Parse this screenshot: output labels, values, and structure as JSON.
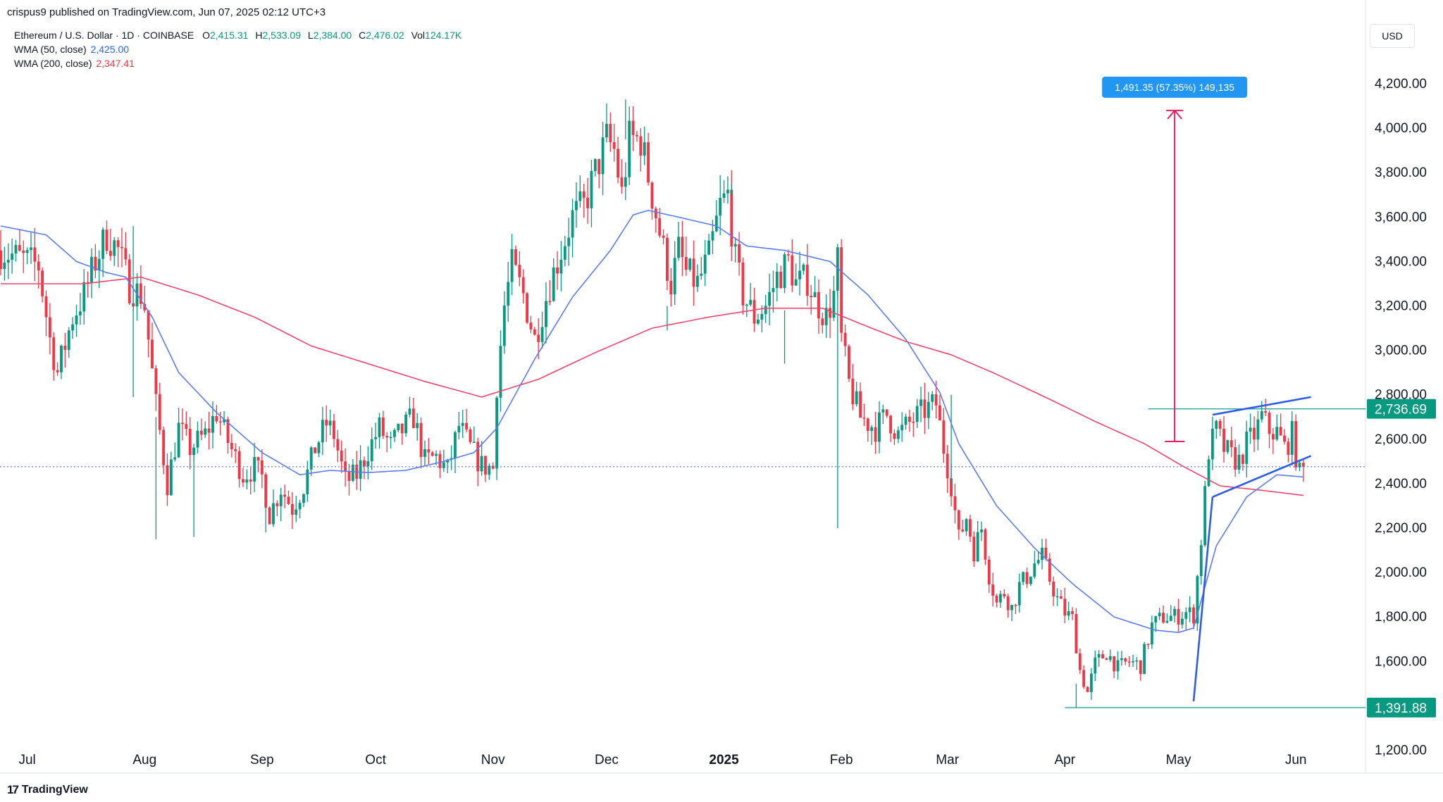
{
  "header": {
    "publisher": "crispus9 published on TradingView.com, Jun 07, 2025 02:12 UTC+3"
  },
  "legend": {
    "symbol": "Ethereum / U.S. Dollar · 1D · COINBASE",
    "open_label": "O",
    "open": "2,415.31",
    "high_label": "H",
    "high": "2,533.09",
    "low_label": "L",
    "low": "2,384.00",
    "close_label": "C",
    "close": "2,476.02",
    "vol_label": "Vol",
    "vol": "124.17K",
    "wma50_label": "WMA (50, close)",
    "wma50": "2,425.00",
    "wma200_label": "WMA (200, close)",
    "wma200": "2,347.41"
  },
  "currency": "USD",
  "measure_label": "1,491.35 (57.35%) 149,135",
  "footer": {
    "brand": "TradingView",
    "mark": "17"
  },
  "colors": {
    "up": "#089981",
    "down": "#f23645",
    "wma50": "#5b7cf0",
    "wma200": "#f0456e",
    "level": "#26a69a",
    "wedge": "#2f5ce6",
    "measure": "#e91e63",
    "badge": "#2196f3"
  },
  "chart_data": {
    "type": "candlestick",
    "title": "Ethereum / U.S. Dollar · 1D · COINBASE",
    "ylim": [
      1100,
      4320
    ],
    "y_ticks": [
      "1,200.00",
      "1,400.00",
      "1,600.00",
      "1,800.00",
      "2,000.00",
      "2,200.00",
      "2,400.00",
      "2,600.00",
      "2,800.00",
      "3,000.00",
      "3,200.00",
      "3,400.00",
      "3,600.00",
      "3,800.00",
      "4,000.00",
      "4,200.00"
    ],
    "y_tick_values": [
      1200,
      1400,
      1600,
      1800,
      2000,
      2200,
      2400,
      2600,
      2800,
      3000,
      3200,
      3400,
      3600,
      3800,
      4000,
      4200
    ],
    "x_labels": [
      {
        "label": "Jul",
        "day": 0
      },
      {
        "label": "Aug",
        "day": 31
      },
      {
        "label": "Sep",
        "day": 62
      },
      {
        "label": "Oct",
        "day": 92
      },
      {
        "label": "Nov",
        "day": 123
      },
      {
        "label": "Dec",
        "day": 153
      },
      {
        "label": "2025",
        "day": 184
      },
      {
        "label": "Feb",
        "day": 215
      },
      {
        "label": "Mar",
        "day": 243
      },
      {
        "label": "Apr",
        "day": 274
      },
      {
        "label": "May",
        "day": 304
      },
      {
        "label": "Jun",
        "day": 335
      }
    ],
    "x_range_days": [
      -7,
      364
    ],
    "price_anchors": [
      [
        -7,
        3450
      ],
      [
        3,
        3380
      ],
      [
        6,
        3050
      ],
      [
        8,
        2900
      ],
      [
        12,
        3150
      ],
      [
        15,
        3250
      ],
      [
        18,
        3400
      ],
      [
        21,
        3520
      ],
      [
        24,
        3450
      ],
      [
        27,
        3290
      ],
      [
        30,
        3250
      ],
      [
        31,
        3200
      ],
      [
        34,
        2750
      ],
      [
        37,
        2400
      ],
      [
        40,
        2650
      ],
      [
        43,
        2560
      ],
      [
        47,
        2620
      ],
      [
        50,
        2720
      ],
      [
        53,
        2590
      ],
      [
        57,
        2440
      ],
      [
        60,
        2470
      ],
      [
        62,
        2430
      ],
      [
        64,
        2260
      ],
      [
        67,
        2380
      ],
      [
        70,
        2290
      ],
      [
        73,
        2390
      ],
      [
        76,
        2560
      ],
      [
        79,
        2670
      ],
      [
        81,
        2620
      ],
      [
        84,
        2410
      ],
      [
        87,
        2440
      ],
      [
        90,
        2550
      ],
      [
        93,
        2650
      ],
      [
        96,
        2570
      ],
      [
        99,
        2640
      ],
      [
        102,
        2700
      ],
      [
        105,
        2500
      ],
      [
        108,
        2520
      ],
      [
        111,
        2460
      ],
      [
        114,
        2660
      ],
      [
        117,
        2560
      ],
      [
        120,
        2480
      ],
      [
        123,
        2470
      ],
      [
        124,
        2850
      ],
      [
        126,
        3200
      ],
      [
        128,
        3380
      ],
      [
        131,
        3250
      ],
      [
        134,
        3050
      ],
      [
        138,
        3300
      ],
      [
        141,
        3450
      ],
      [
        144,
        3600
      ],
      [
        147,
        3650
      ],
      [
        150,
        3800
      ],
      [
        153,
        3950
      ],
      [
        155,
        3900
      ],
      [
        157,
        3700
      ],
      [
        159,
        3950
      ],
      [
        162,
        3950
      ],
      [
        165,
        3700
      ],
      [
        168,
        3450
      ],
      [
        170,
        3300
      ],
      [
        172,
        3450
      ],
      [
        174,
        3350
      ],
      [
        177,
        3300
      ],
      [
        180,
        3420
      ],
      [
        183,
        3650
      ],
      [
        185,
        3700
      ],
      [
        187,
        3400
      ],
      [
        189,
        3250
      ],
      [
        192,
        3150
      ],
      [
        195,
        3200
      ],
      [
        198,
        3330
      ],
      [
        201,
        3400
      ],
      [
        203,
        3300
      ],
      [
        206,
        3320
      ],
      [
        208,
        3230
      ],
      [
        211,
        3150
      ],
      [
        213,
        3250
      ],
      [
        214,
        3400
      ],
      [
        215,
        3050
      ],
      [
        217,
        2850
      ],
      [
        220,
        2700
      ],
      [
        224,
        2650
      ],
      [
        227,
        2710
      ],
      [
        230,
        2620
      ],
      [
        234,
        2690
      ],
      [
        237,
        2730
      ],
      [
        240,
        2760
      ],
      [
        242,
        2560
      ],
      [
        244,
        2400
      ],
      [
        246,
        2150
      ],
      [
        248,
        2250
      ],
      [
        250,
        2100
      ],
      [
        252,
        2200
      ],
      [
        254,
        1990
      ],
      [
        256,
        1860
      ],
      [
        258,
        1910
      ],
      [
        260,
        1840
      ],
      [
        262,
        1940
      ],
      [
        264,
        1980
      ],
      [
        266,
        2040
      ],
      [
        268,
        2070
      ],
      [
        270,
        1970
      ],
      [
        272,
        1880
      ],
      [
        274,
        1820
      ],
      [
        276,
        1790
      ],
      [
        278,
        1560
      ],
      [
        280,
        1460
      ],
      [
        282,
        1590
      ],
      [
        285,
        1640
      ],
      [
        288,
        1570
      ],
      [
        291,
        1600
      ],
      [
        294,
        1580
      ],
      [
        297,
        1760
      ],
      [
        300,
        1800
      ],
      [
        303,
        1800
      ],
      [
        306,
        1820
      ],
      [
        308,
        1810
      ],
      [
        310,
        2150
      ],
      [
        312,
        2550
      ],
      [
        314,
        2640
      ],
      [
        316,
        2560
      ],
      [
        318,
        2520
      ],
      [
        320,
        2500
      ],
      [
        322,
        2580
      ],
      [
        324,
        2620
      ],
      [
        326,
        2700
      ],
      [
        328,
        2640
      ],
      [
        330,
        2630
      ],
      [
        332,
        2560
      ],
      [
        334,
        2620
      ],
      [
        336,
        2440
      ],
      [
        337,
        2470
      ]
    ],
    "wma50_anchors": [
      [
        -7,
        3560
      ],
      [
        5,
        3520
      ],
      [
        13,
        3400
      ],
      [
        21,
        3350
      ],
      [
        26,
        3330
      ],
      [
        33,
        3150
      ],
      [
        40,
        2900
      ],
      [
        50,
        2720
      ],
      [
        62,
        2540
      ],
      [
        72,
        2440
      ],
      [
        80,
        2460
      ],
      [
        90,
        2450
      ],
      [
        100,
        2460
      ],
      [
        110,
        2500
      ],
      [
        118,
        2540
      ],
      [
        124,
        2650
      ],
      [
        134,
        2960
      ],
      [
        144,
        3240
      ],
      [
        154,
        3450
      ],
      [
        160,
        3610
      ],
      [
        164,
        3630
      ],
      [
        172,
        3600
      ],
      [
        182,
        3560
      ],
      [
        190,
        3470
      ],
      [
        200,
        3450
      ],
      [
        212,
        3400
      ],
      [
        222,
        3250
      ],
      [
        232,
        3050
      ],
      [
        241,
        2810
      ],
      [
        246,
        2580
      ],
      [
        256,
        2300
      ],
      [
        266,
        2110
      ],
      [
        276,
        1950
      ],
      [
        287,
        1800
      ],
      [
        298,
        1740
      ],
      [
        304,
        1730
      ],
      [
        308,
        1750
      ],
      [
        314,
        2120
      ],
      [
        322,
        2340
      ],
      [
        330,
        2440
      ],
      [
        337,
        2430
      ]
    ],
    "wma200_anchors": [
      [
        -7,
        3300
      ],
      [
        15,
        3300
      ],
      [
        30,
        3330
      ],
      [
        45,
        3250
      ],
      [
        60,
        3150
      ],
      [
        75,
        3020
      ],
      [
        90,
        2940
      ],
      [
        105,
        2860
      ],
      [
        120,
        2790
      ],
      [
        135,
        2870
      ],
      [
        150,
        2990
      ],
      [
        165,
        3100
      ],
      [
        180,
        3150
      ],
      [
        195,
        3190
      ],
      [
        210,
        3190
      ],
      [
        220,
        3120
      ],
      [
        232,
        3040
      ],
      [
        244,
        2980
      ],
      [
        255,
        2900
      ],
      [
        270,
        2780
      ],
      [
        282,
        2680
      ],
      [
        295,
        2580
      ],
      [
        305,
        2480
      ],
      [
        315,
        2390
      ],
      [
        326,
        2370
      ],
      [
        337,
        2347
      ]
    ],
    "levels": {
      "resistance": 2736.69,
      "resistance_label": "2,736.69",
      "support": 1391.88,
      "support_label": "1,391.88",
      "last_price": 2476.02
    },
    "measure": {
      "day": 303,
      "from": 2590,
      "to": 4080
    },
    "wedge": {
      "lower": [
        [
          313,
          2340
        ],
        [
          339,
          2525
        ]
      ],
      "upper": [
        [
          313,
          2710
        ],
        [
          339,
          2790
        ]
      ],
      "pole": [
        [
          308,
          1420
        ],
        [
          313,
          2340
        ]
      ]
    }
  }
}
